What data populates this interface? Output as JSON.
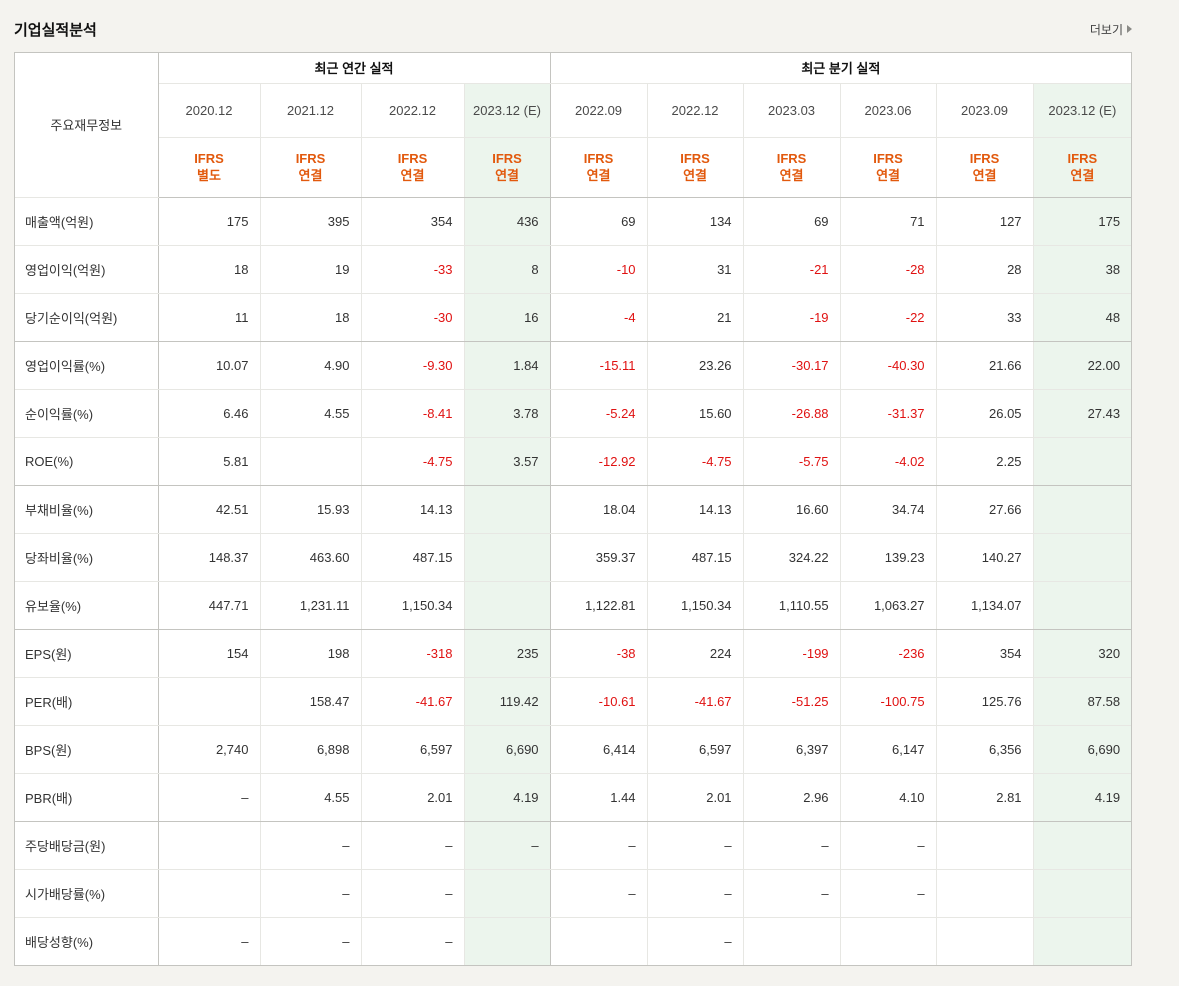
{
  "page": {
    "title": "기업실적분석",
    "more_label": "더보기"
  },
  "colors": {
    "estimate_bg": "#ecf5ed",
    "negative": "#e01111",
    "ifrs_orange": "#e2590d"
  },
  "table": {
    "corner_label": "주요재무정보",
    "groups": [
      {
        "label": "최근 연간 실적",
        "span": 4
      },
      {
        "label": "최근 분기 실적",
        "span": 6
      }
    ],
    "columns": [
      {
        "period": "2020.12",
        "ifrs": [
          "IFRS",
          "별도"
        ],
        "estimate": false
      },
      {
        "period": "2021.12",
        "ifrs": [
          "IFRS",
          "연결"
        ],
        "estimate": false
      },
      {
        "period": "2022.12",
        "ifrs": [
          "IFRS",
          "연결"
        ],
        "estimate": false
      },
      {
        "period": "2023.12 (E)",
        "ifrs": [
          "IFRS",
          "연결"
        ],
        "estimate": true
      },
      {
        "period": "2022.09",
        "ifrs": [
          "IFRS",
          "연결"
        ],
        "estimate": false
      },
      {
        "period": "2022.12",
        "ifrs": [
          "IFRS",
          "연결"
        ],
        "estimate": false
      },
      {
        "period": "2023.03",
        "ifrs": [
          "IFRS",
          "연결"
        ],
        "estimate": false
      },
      {
        "period": "2023.06",
        "ifrs": [
          "IFRS",
          "연결"
        ],
        "estimate": false
      },
      {
        "period": "2023.09",
        "ifrs": [
          "IFRS",
          "연결"
        ],
        "estimate": false
      },
      {
        "period": "2023.12 (E)",
        "ifrs": [
          "IFRS",
          "연결"
        ],
        "estimate": true
      }
    ],
    "rows": [
      {
        "label": "매출액(억원)",
        "section": false,
        "values": [
          "175",
          "395",
          "354",
          "436",
          "69",
          "134",
          "69",
          "71",
          "127",
          "175"
        ]
      },
      {
        "label": "영업이익(억원)",
        "section": false,
        "values": [
          "18",
          "19",
          "-33",
          "8",
          "-10",
          "31",
          "-21",
          "-28",
          "28",
          "38"
        ]
      },
      {
        "label": "당기순이익(억원)",
        "section": false,
        "values": [
          "11",
          "18",
          "-30",
          "16",
          "-4",
          "21",
          "-19",
          "-22",
          "33",
          "48"
        ]
      },
      {
        "label": "영업이익률(%)",
        "section": true,
        "values": [
          "10.07",
          "4.90",
          "-9.30",
          "1.84",
          "-15.11",
          "23.26",
          "-30.17",
          "-40.30",
          "21.66",
          "22.00"
        ]
      },
      {
        "label": "순이익률(%)",
        "section": false,
        "values": [
          "6.46",
          "4.55",
          "-8.41",
          "3.78",
          "-5.24",
          "15.60",
          "-26.88",
          "-31.37",
          "26.05",
          "27.43"
        ]
      },
      {
        "label": "ROE(%)",
        "section": false,
        "values": [
          "5.81",
          "",
          "-4.75",
          "3.57",
          "-12.92",
          "-4.75",
          "-5.75",
          "-4.02",
          "2.25",
          ""
        ]
      },
      {
        "label": "부채비율(%)",
        "section": true,
        "values": [
          "42.51",
          "15.93",
          "14.13",
          "",
          "18.04",
          "14.13",
          "16.60",
          "34.74",
          "27.66",
          ""
        ]
      },
      {
        "label": "당좌비율(%)",
        "section": false,
        "values": [
          "148.37",
          "463.60",
          "487.15",
          "",
          "359.37",
          "487.15",
          "324.22",
          "139.23",
          "140.27",
          ""
        ]
      },
      {
        "label": "유보율(%)",
        "section": false,
        "values": [
          "447.71",
          "1,231.11",
          "1,150.34",
          "",
          "1,122.81",
          "1,150.34",
          "1,110.55",
          "1,063.27",
          "1,134.07",
          ""
        ]
      },
      {
        "label": "EPS(원)",
        "section": true,
        "values": [
          "154",
          "198",
          "-318",
          "235",
          "-38",
          "224",
          "-199",
          "-236",
          "354",
          "320"
        ]
      },
      {
        "label": "PER(배)",
        "section": false,
        "values": [
          "",
          "158.47",
          "-41.67",
          "119.42",
          "-10.61",
          "-41.67",
          "-51.25",
          "-100.75",
          "125.76",
          "87.58"
        ]
      },
      {
        "label": "BPS(원)",
        "section": false,
        "values": [
          "2,740",
          "6,898",
          "6,597",
          "6,690",
          "6,414",
          "6,597",
          "6,397",
          "6,147",
          "6,356",
          "6,690"
        ]
      },
      {
        "label": "PBR(배)",
        "section": false,
        "values": [
          "–",
          "4.55",
          "2.01",
          "4.19",
          "1.44",
          "2.01",
          "2.96",
          "4.10",
          "2.81",
          "4.19"
        ]
      },
      {
        "label": "주당배당금(원)",
        "section": true,
        "values": [
          "",
          "–",
          "–",
          "–",
          "–",
          "–",
          "–",
          "–",
          "",
          ""
        ]
      },
      {
        "label": "시가배당률(%)",
        "section": false,
        "values": [
          "",
          "–",
          "–",
          "",
          "–",
          "–",
          "–",
          "–",
          "",
          ""
        ]
      },
      {
        "label": "배당성향(%)",
        "section": false,
        "values": [
          "–",
          "–",
          "–",
          "",
          "",
          "–",
          "",
          "",
          "",
          ""
        ]
      }
    ]
  }
}
